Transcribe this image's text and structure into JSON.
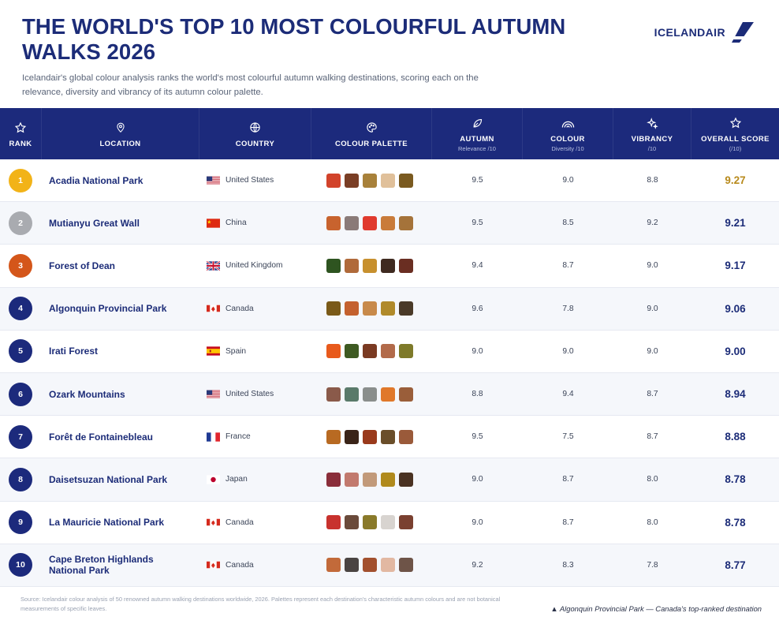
{
  "header": {
    "title": "THE WORLD'S TOP 10 MOST COLOURFUL AUTUMN WALKS 2026",
    "subtitle": "Icelandair's global colour analysis ranks the world's most colourful autumn walking destinations, scoring each on the relevance, diversity and vibrancy of its autumn colour palette.",
    "logo_text": "ICELANDAIR"
  },
  "columns": [
    {
      "label": "RANK",
      "sub": "",
      "icon": "star-outline-icon"
    },
    {
      "label": "LOCATION",
      "sub": "",
      "icon": "map-pin-icon"
    },
    {
      "label": "COUNTRY",
      "sub": "",
      "icon": "globe-icon"
    },
    {
      "label": "COLOUR PALETTE",
      "sub": "",
      "icon": "palette-icon"
    },
    {
      "label": "AUTUMN",
      "sub": "Relevance /10",
      "icon": "leaf-icon"
    },
    {
      "label": "COLOUR",
      "sub": "Diversity /10",
      "icon": "rainbow-icon"
    },
    {
      "label": "VIBRANCY",
      "sub": "/10",
      "icon": "sparkle-icon"
    },
    {
      "label": "OVERALL SCORE",
      "sub": "(/10)",
      "icon": "star-outline-icon"
    }
  ],
  "rows": [
    {
      "rank": "1",
      "badge_color": "#f2b318",
      "location": "Acadia National Park",
      "country": "United States",
      "flag": "us",
      "palette": [
        "#d2432b",
        "#7a3e25",
        "#a8813a",
        "#e0c09a",
        "#7a5a20"
      ],
      "autumn": "9.5",
      "colour": "9.0",
      "vibrancy": "8.8",
      "overall": "9.27",
      "overall_color": "#b88a1c"
    },
    {
      "rank": "2",
      "badge_color": "#a9abb0",
      "location": "Mutianyu Great Wall",
      "country": "China",
      "flag": "cn",
      "palette": [
        "#c8632e",
        "#8a7a78",
        "#e03a2e",
        "#c97b3a",
        "#a5733a"
      ],
      "autumn": "9.5",
      "colour": "8.5",
      "vibrancy": "9.2",
      "overall": "9.21",
      "overall_color": "#1c2c78"
    },
    {
      "rank": "3",
      "badge_color": "#d4561a",
      "location": "Forest of Dean",
      "country": "United Kingdom",
      "flag": "gb",
      "palette": [
        "#2e5420",
        "#b06a3a",
        "#c7902e",
        "#3f2a20",
        "#6a2e22"
      ],
      "autumn": "9.4",
      "colour": "8.7",
      "vibrancy": "9.0",
      "overall": "9.17",
      "overall_color": "#1c2c78"
    },
    {
      "rank": "4",
      "badge_color": "#1c2a7c",
      "location": "Algonquin Provincial Park",
      "country": "Canada",
      "flag": "ca",
      "palette": [
        "#7a5a18",
        "#c4612e",
        "#c88a4a",
        "#b08a2a",
        "#4a3a28"
      ],
      "autumn": "9.6",
      "colour": "7.8",
      "vibrancy": "9.0",
      "overall": "9.06",
      "overall_color": "#1c2c78"
    },
    {
      "rank": "5",
      "badge_color": "#1c2a7c",
      "location": "Irati Forest",
      "country": "Spain",
      "flag": "es",
      "palette": [
        "#e85a1c",
        "#3e5a22",
        "#7a3a22",
        "#b26a4a",
        "#7e7a2a"
      ],
      "autumn": "9.0",
      "colour": "9.0",
      "vibrancy": "9.0",
      "overall": "9.00",
      "overall_color": "#1c2c78"
    },
    {
      "rank": "6",
      "badge_color": "#1c2a7c",
      "location": "Ozark Mountains",
      "country": "United States",
      "flag": "us",
      "palette": [
        "#8a5a4a",
        "#5a7a6a",
        "#8a8e8c",
        "#e0782a",
        "#9a5e3a"
      ],
      "autumn": "8.8",
      "colour": "9.4",
      "vibrancy": "8.7",
      "overall": "8.94",
      "overall_color": "#1c2c78"
    },
    {
      "rank": "7",
      "badge_color": "#1c2a7c",
      "location": "Forêt de Fontainebleau",
      "country": "France",
      "flag": "fr",
      "palette": [
        "#b86a22",
        "#3a2418",
        "#9a3a1c",
        "#6a4e2a",
        "#9a5a3a"
      ],
      "autumn": "9.5",
      "colour": "7.5",
      "vibrancy": "8.7",
      "overall": "8.88",
      "overall_color": "#1c2c78"
    },
    {
      "rank": "8",
      "badge_color": "#1c2a7c",
      "location": "Daisetsuzan National Park",
      "country": "Japan",
      "flag": "jp",
      "palette": [
        "#8a2e3a",
        "#c27a6e",
        "#c29a7a",
        "#b08a1c",
        "#4a3222"
      ],
      "autumn": "9.0",
      "colour": "8.7",
      "vibrancy": "8.0",
      "overall": "8.78",
      "overall_color": "#1c2c78"
    },
    {
      "rank": "9",
      "badge_color": "#1c2a7c",
      "location": "La Mauricie National Park",
      "country": "Canada",
      "flag": "ca",
      "palette": [
        "#c8322e",
        "#6a4a3a",
        "#8a7a2a",
        "#d8d4d0",
        "#7a4030"
      ],
      "autumn": "9.0",
      "colour": "8.7",
      "vibrancy": "8.0",
      "overall": "8.78",
      "overall_color": "#1c2c78"
    },
    {
      "rank": "10",
      "badge_color": "#1c2a7c",
      "location": "Cape Breton Highlands National Park",
      "country": "Canada",
      "flag": "ca",
      "palette": [
        "#c26a3a",
        "#4a4442",
        "#a2502e",
        "#e2b8a2",
        "#6e5448"
      ],
      "autumn": "9.2",
      "colour": "8.3",
      "vibrancy": "7.8",
      "overall": "8.77",
      "overall_color": "#1c2c78"
    }
  ],
  "footer": {
    "source": "Source: Icelandair colour analysis of 50 renowned autumn walking destinations worldwide, 2026. Palettes represent each destination's characteristic autumn colours and are not botanical measurements of specific leaves.",
    "caption": "▲ Algonquin Provincial Park — Canada's top-ranked destination"
  }
}
